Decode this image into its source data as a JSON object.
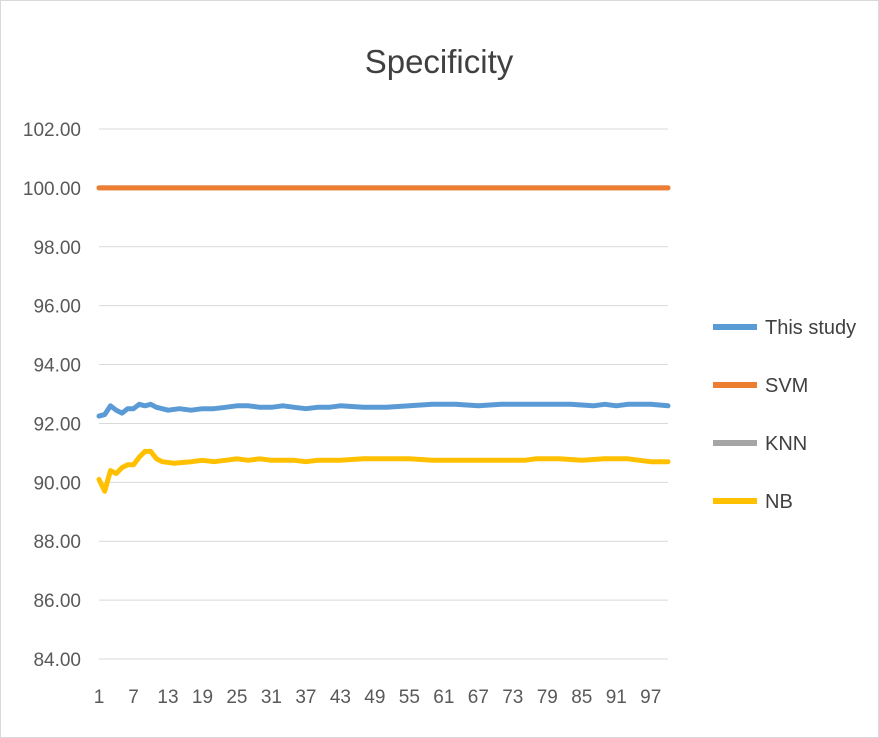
{
  "chart_data": {
    "type": "line",
    "title": "Specificity",
    "xlabel": "",
    "ylabel": "",
    "ylim": [
      84,
      102
    ],
    "yticks": [
      "84.00",
      "86.00",
      "88.00",
      "90.00",
      "92.00",
      "94.00",
      "96.00",
      "98.00",
      "100.00",
      "102.00"
    ],
    "xrange": [
      1,
      100
    ],
    "xticks": [
      1,
      7,
      13,
      19,
      25,
      31,
      37,
      43,
      49,
      55,
      61,
      67,
      73,
      79,
      85,
      91,
      97
    ],
    "grid": "horizontal",
    "legend_position": "right",
    "series": [
      {
        "name": "This study",
        "color": "#5b9bd5",
        "points": [
          [
            1,
            92.25
          ],
          [
            2,
            92.3
          ],
          [
            3,
            92.6
          ],
          [
            4,
            92.45
          ],
          [
            5,
            92.35
          ],
          [
            6,
            92.5
          ],
          [
            7,
            92.5
          ],
          [
            8,
            92.65
          ],
          [
            9,
            92.6
          ],
          [
            10,
            92.65
          ],
          [
            11,
            92.55
          ],
          [
            12,
            92.5
          ],
          [
            13,
            92.45
          ],
          [
            15,
            92.5
          ],
          [
            17,
            92.45
          ],
          [
            19,
            92.5
          ],
          [
            21,
            92.5
          ],
          [
            23,
            92.55
          ],
          [
            25,
            92.6
          ],
          [
            27,
            92.6
          ],
          [
            29,
            92.55
          ],
          [
            31,
            92.55
          ],
          [
            33,
            92.6
          ],
          [
            35,
            92.55
          ],
          [
            37,
            92.5
          ],
          [
            39,
            92.55
          ],
          [
            41,
            92.55
          ],
          [
            43,
            92.6
          ],
          [
            47,
            92.55
          ],
          [
            51,
            92.55
          ],
          [
            55,
            92.6
          ],
          [
            59,
            92.65
          ],
          [
            63,
            92.65
          ],
          [
            67,
            92.6
          ],
          [
            71,
            92.65
          ],
          [
            75,
            92.65
          ],
          [
            79,
            92.65
          ],
          [
            83,
            92.65
          ],
          [
            87,
            92.6
          ],
          [
            89,
            92.65
          ],
          [
            91,
            92.6
          ],
          [
            93,
            92.65
          ],
          [
            97,
            92.65
          ],
          [
            100,
            92.6
          ]
        ]
      },
      {
        "name": "SVM",
        "color": "#ed7d31",
        "points": [
          [
            1,
            100
          ],
          [
            100,
            100
          ]
        ]
      },
      {
        "name": "KNN",
        "color": "#a5a5a5",
        "points": [
          [
            1,
            100
          ],
          [
            100,
            100
          ]
        ]
      },
      {
        "name": "NB",
        "color": "#ffc000",
        "points": [
          [
            1,
            90.1
          ],
          [
            2,
            89.7
          ],
          [
            3,
            90.4
          ],
          [
            4,
            90.3
          ],
          [
            5,
            90.5
          ],
          [
            6,
            90.6
          ],
          [
            7,
            90.6
          ],
          [
            8,
            90.85
          ],
          [
            9,
            91.05
          ],
          [
            10,
            91.05
          ],
          [
            11,
            90.8
          ],
          [
            12,
            90.7
          ],
          [
            14,
            90.65
          ],
          [
            17,
            90.7
          ],
          [
            19,
            90.75
          ],
          [
            21,
            90.7
          ],
          [
            23,
            90.75
          ],
          [
            25,
            90.8
          ],
          [
            27,
            90.75
          ],
          [
            29,
            90.8
          ],
          [
            31,
            90.75
          ],
          [
            35,
            90.75
          ],
          [
            37,
            90.7
          ],
          [
            39,
            90.75
          ],
          [
            43,
            90.75
          ],
          [
            47,
            90.8
          ],
          [
            51,
            90.8
          ],
          [
            55,
            90.8
          ],
          [
            59,
            90.75
          ],
          [
            65,
            90.75
          ],
          [
            71,
            90.75
          ],
          [
            75,
            90.75
          ],
          [
            77,
            90.8
          ],
          [
            81,
            90.8
          ],
          [
            85,
            90.75
          ],
          [
            89,
            90.8
          ],
          [
            93,
            90.8
          ],
          [
            95,
            90.75
          ],
          [
            97,
            90.7
          ],
          [
            100,
            90.7
          ]
        ]
      }
    ]
  }
}
